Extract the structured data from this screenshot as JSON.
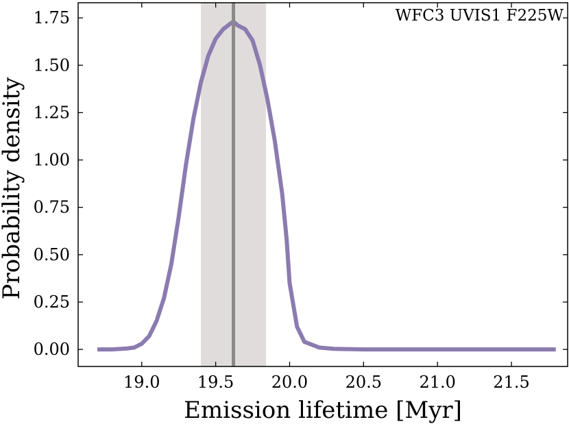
{
  "chart_data": {
    "type": "line",
    "title": "",
    "xlabel": "Emission lifetime [Myr]",
    "ylabel": "Probability density",
    "annotation": "WFC3 UVIS1 F225W",
    "xlim": [
      18.57,
      21.88
    ],
    "ylim": [
      -0.09,
      1.83
    ],
    "xticks": [
      "19.0",
      "19.5",
      "20.0",
      "20.5",
      "21.0",
      "21.5"
    ],
    "yticks": [
      "0.00",
      "0.25",
      "0.50",
      "0.75",
      "1.00",
      "1.25",
      "1.50",
      "1.75"
    ],
    "grid": false,
    "legend": "none",
    "vline": 19.62,
    "band": [
      19.4,
      19.84
    ],
    "series": [
      {
        "color": "#8b7bb0",
        "x": [
          18.7,
          18.8,
          18.9,
          18.95,
          19.0,
          19.05,
          19.1,
          19.15,
          19.2,
          19.25,
          19.3,
          19.35,
          19.4,
          19.45,
          19.5,
          19.55,
          19.6,
          19.62,
          19.65,
          19.7,
          19.75,
          19.8,
          19.85,
          19.9,
          19.95,
          19.98,
          20.0,
          20.05,
          20.1,
          20.2,
          20.3,
          20.5,
          21.0,
          21.8
        ],
        "y": [
          0.0,
          0.0,
          0.005,
          0.01,
          0.03,
          0.07,
          0.15,
          0.27,
          0.45,
          0.7,
          0.98,
          1.22,
          1.41,
          1.55,
          1.64,
          1.69,
          1.72,
          1.73,
          1.71,
          1.69,
          1.63,
          1.5,
          1.32,
          1.1,
          0.82,
          0.58,
          0.35,
          0.12,
          0.04,
          0.01,
          0.003,
          0.0,
          0.0,
          0.0
        ]
      }
    ]
  },
  "colors": {
    "band": "#e0dcdc",
    "vline": "#8a8a8a",
    "series": "#8b7bb0"
  }
}
